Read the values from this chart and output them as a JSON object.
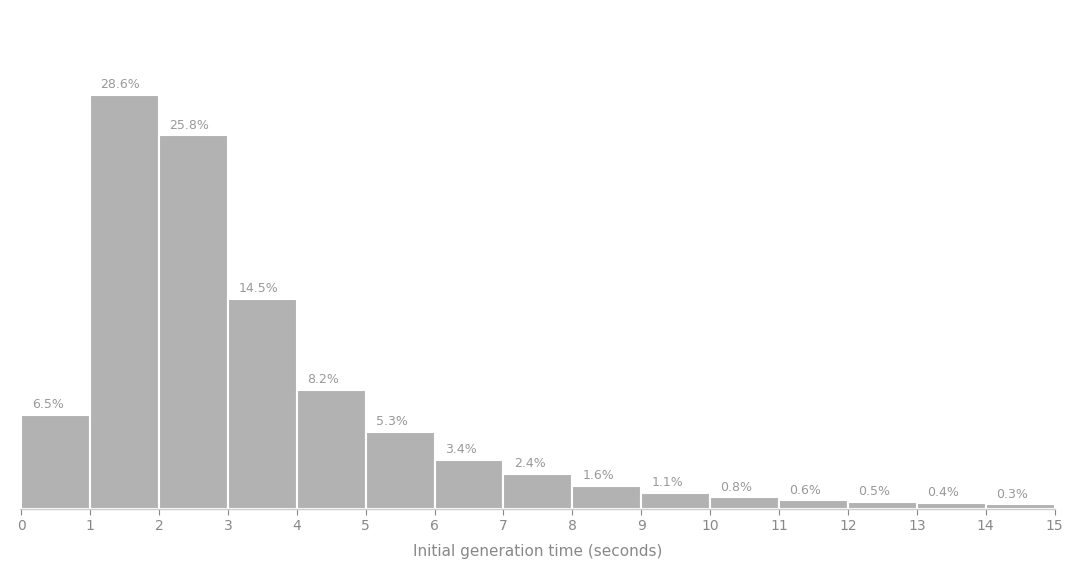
{
  "categories": [
    0,
    1,
    2,
    3,
    4,
    5,
    6,
    7,
    8,
    9,
    10,
    11,
    12,
    13,
    14
  ],
  "values": [
    6.5,
    28.6,
    25.8,
    14.5,
    8.2,
    5.3,
    3.4,
    2.4,
    1.6,
    1.1,
    0.8,
    0.6,
    0.5,
    0.4,
    0.3
  ],
  "labels": [
    "6.5%",
    "28.6%",
    "25.8%",
    "14.5%",
    "8.2%",
    "5.3%",
    "3.4%",
    "2.4%",
    "1.6%",
    "1.1%",
    "0.8%",
    "0.6%",
    "0.5%",
    "0.4%",
    "0.3%"
  ],
  "bar_color": "#b2b2b2",
  "bar_edgecolor": "#ffffff",
  "xlabel": "Initial generation time (seconds)",
  "xlabel_fontsize": 11,
  "label_fontsize": 9,
  "label_color": "#999999",
  "xlim": [
    -0.02,
    15
  ],
  "ylim": [
    0,
    34
  ],
  "xticks": [
    0,
    1,
    2,
    3,
    4,
    5,
    6,
    7,
    8,
    9,
    10,
    11,
    12,
    13,
    14,
    15
  ],
  "background_color": "#ffffff",
  "bar_width": 1.0,
  "tick_color": "#888888",
  "tick_fontsize": 10,
  "spine_color": "#cccccc"
}
